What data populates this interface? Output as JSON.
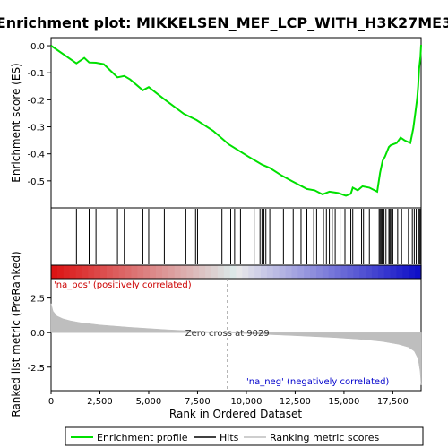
{
  "chart_data": {
    "type": "line",
    "title": "Enrichment plot: MIKKELSEN_MEF_LCP_WITH_H3K27ME3",
    "xlabel": "Rank in Ordered Dataset",
    "es_panel": {
      "ylabel": "Enrichment score (ES)",
      "ylim": [
        -0.6,
        0.03
      ],
      "yticks": [
        0.0,
        -0.1,
        -0.2,
        -0.3,
        -0.4,
        -0.5
      ],
      "ytick_labels": [
        "0.0",
        "-0.1",
        "-0.2",
        "-0.3",
        "-0.4",
        "-0.5"
      ],
      "series": [
        {
          "name": "Enrichment profile",
          "color": "#00e000",
          "x": [
            0,
            1300,
            1700,
            1950,
            2300,
            2700,
            3400,
            3750,
            4050,
            4700,
            5000,
            5800,
            6800,
            7450,
            8300,
            9100,
            10100,
            10800,
            11200,
            11800,
            12300,
            13100,
            13500,
            13900,
            14250,
            14700,
            15100,
            15350,
            15450,
            15700,
            15950,
            16300,
            16700,
            16850,
            16980,
            17100,
            17300,
            17400,
            17700,
            17900,
            18100,
            18400,
            18550,
            18650,
            18750,
            18800,
            18850,
            18920,
            18950
          ],
          "y": [
            0.0,
            -0.065,
            -0.045,
            -0.062,
            -0.063,
            -0.068,
            -0.117,
            -0.112,
            -0.125,
            -0.165,
            -0.153,
            -0.198,
            -0.252,
            -0.275,
            -0.315,
            -0.365,
            -0.41,
            -0.44,
            -0.452,
            -0.48,
            -0.5,
            -0.53,
            -0.535,
            -0.55,
            -0.54,
            -0.545,
            -0.555,
            -0.548,
            -0.525,
            -0.535,
            -0.52,
            -0.525,
            -0.54,
            -0.47,
            -0.425,
            -0.41,
            -0.375,
            -0.368,
            -0.36,
            -0.34,
            -0.35,
            -0.36,
            -0.305,
            -0.25,
            -0.195,
            -0.15,
            -0.085,
            -0.04,
            0.003
          ]
        }
      ]
    },
    "hits_panel": {
      "label": "Hits",
      "hit_ranks": [
        1300,
        1950,
        2300,
        3400,
        3750,
        4700,
        5000,
        5800,
        6900,
        7400,
        7500,
        8750,
        9200,
        9400,
        9700,
        10400,
        10700,
        10800,
        10900,
        11000,
        11200,
        11900,
        12400,
        12800,
        13100,
        13450,
        13600,
        13950,
        14100,
        14250,
        14400,
        14550,
        14800,
        15050,
        15350,
        15450,
        15900,
        16000,
        16300,
        16800,
        16850,
        16900,
        16950,
        17000,
        17050,
        17150,
        17300,
        17350,
        17400,
        17500,
        17750,
        17950,
        18300,
        18500,
        18600,
        18700,
        18800,
        18850,
        18900
      ]
    },
    "metric_panel": {
      "ylabel": "Ranked list metric (PreRanked)",
      "ylim": [
        -4.2,
        3.9
      ],
      "yticks": [
        2.5,
        0.0,
        -2.5
      ],
      "ytick_labels": [
        "2.5",
        "0.0",
        "-2.5"
      ],
      "series": [
        {
          "name": "Ranking metric scores",
          "color": "#bebebe",
          "x": [
            0,
            100,
            300,
            600,
            1000,
            1500,
            2500,
            4000,
            6000,
            8000,
            9029,
            10500,
            12500,
            14500,
            16000,
            17000,
            17800,
            18300,
            18600,
            18800,
            18900,
            18950
          ],
          "y": [
            2.1,
            1.55,
            1.2,
            1.0,
            0.85,
            0.72,
            0.55,
            0.38,
            0.2,
            0.07,
            0.0,
            -0.1,
            -0.22,
            -0.36,
            -0.5,
            -0.65,
            -0.85,
            -1.05,
            -1.35,
            -1.9,
            -2.8,
            -3.8
          ]
        }
      ],
      "zero_cross_label": "Zero cross at 9029",
      "zero_cross": 9029,
      "pos_label": "'na_pos' (positively correlated)",
      "neg_label": "'na_neg' (negatively correlated)",
      "pos_color": "#cc0000",
      "neg_color": "#0000cc"
    },
    "xlim": [
      0,
      18950
    ],
    "xticks": [
      0,
      2500,
      5000,
      7500,
      10000,
      12500,
      15000,
      17500
    ],
    "xtick_labels": [
      "0",
      "2,500",
      "5,000",
      "7,500",
      "10,000",
      "12,500",
      "15,000",
      "17,500"
    ],
    "legend": {
      "position": "bottom",
      "entries": [
        {
          "label": "Enrichment profile",
          "color": "#00e000"
        },
        {
          "label": "Hits",
          "color": "#000000"
        },
        {
          "label": "Ranking metric scores",
          "color": "#bebebe"
        }
      ]
    },
    "grid": false
  }
}
